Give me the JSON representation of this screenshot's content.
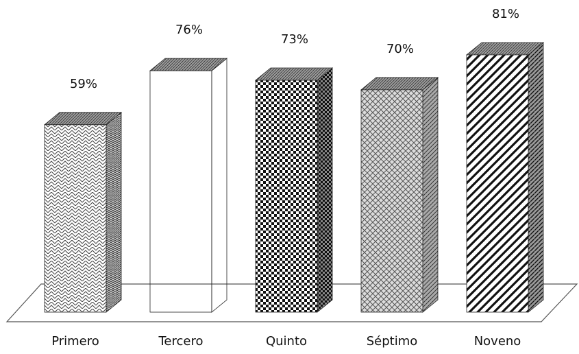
{
  "chart_data": {
    "type": "bar",
    "style": "3d-column",
    "categories": [
      "Primero",
      "Tercero",
      "Quinto",
      "Séptimo",
      "Noveno"
    ],
    "values": [
      59,
      76,
      73,
      70,
      81
    ],
    "value_labels": [
      "59%",
      "76%",
      "73%",
      "70%",
      "81%"
    ],
    "title": "",
    "xlabel": "",
    "ylabel": "",
    "ylim": [
      0,
      100
    ],
    "grid": false,
    "legend": "none",
    "patterns": [
      "brick",
      "horizontal-dash",
      "checker",
      "weave",
      "diagonal"
    ],
    "colors": {
      "stroke": "#222222",
      "fill_dark": "#111111",
      "fill_light": "#ffffff",
      "floor": "#ffffff"
    }
  }
}
